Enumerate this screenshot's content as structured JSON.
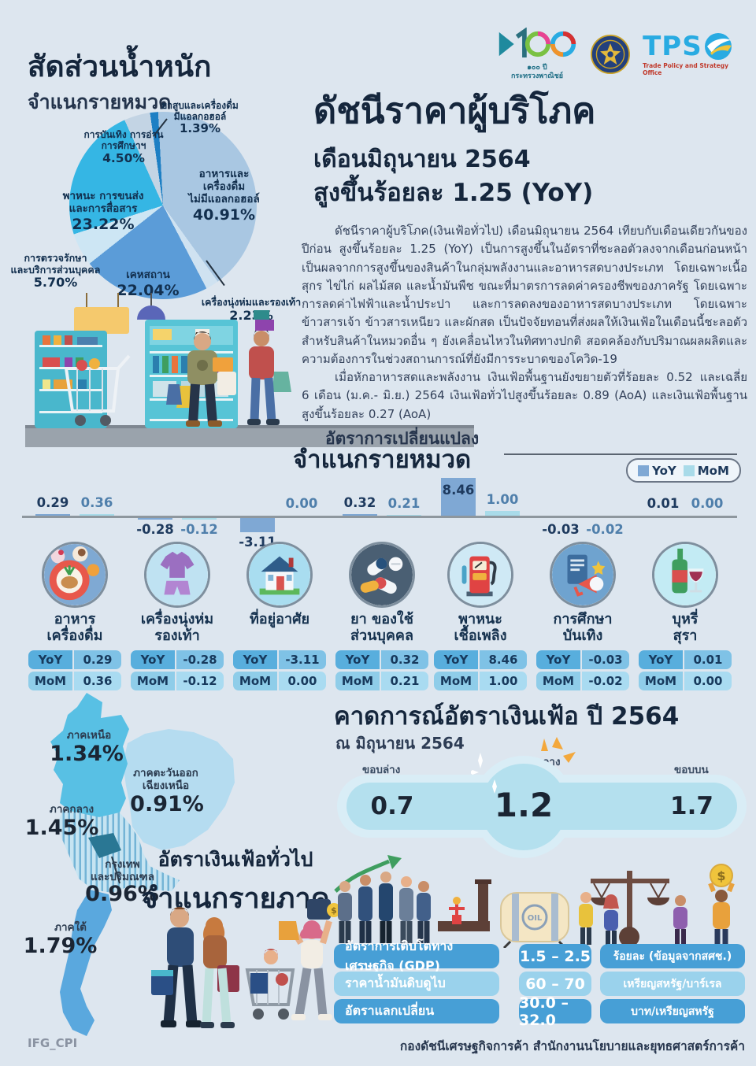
{
  "page": {
    "footer_left": "IFG_CPI",
    "footer_right": "กองดัชนีเศรษฐกิจการค้า สำนักงานนโยบายและยุทธศาสตร์การค้า",
    "background": "#dde6ef"
  },
  "logos": {
    "moc100_caption": "๑๐๐ ปี\nกระทรวงพาณิชย์",
    "tpso_word": "TPS",
    "tpso_subtitle": "Trade Policy and Strategy Office"
  },
  "weight_section": {
    "title": "สัดส่วนน้ำหนัก",
    "subtitle": "จำแนกรายหมวด",
    "labels": {
      "tobacco": {
        "text": "ยาสูบและเครื่องดื่ม\nมีแอลกอฮอล์",
        "value": "1.39%"
      },
      "entertainment": {
        "text": "การบันเทิง การอ่าน\nการศึกษาฯ",
        "value": "4.50%"
      },
      "food": {
        "text": "อาหารและ\nเครื่องดื่ม\nไม่มีแอลกอฮอล์",
        "value": "40.91%"
      },
      "transport": {
        "text": "พาหนะ การขนส่ง\nและการสื่อสาร",
        "value": "23.22%"
      },
      "housing": {
        "text": "เคหสถาน",
        "value": "22.04%"
      },
      "medical": {
        "text": "การตรวจรักษา\nและบริการส่วนบุคคล",
        "value": "5.70%"
      },
      "clothing": {
        "text": "เครื่องนุ่งห่มและรองเท้า",
        "value": "2.23%"
      }
    }
  },
  "headline": {
    "title": "ดัชนีราคาผู้บริโภค",
    "line2": "เดือนมิถุนายน 2564",
    "line3": "สูงขึ้นร้อยละ 1.25 (YoY)"
  },
  "body": {
    "p1": "ดัชนีราคาผู้บริโภค(เงินเฟ้อทั่วไป) เดือนมิถุนายน 2564 เทียบกับเดือนเดียวกันของปีก่อน สูงขึ้นร้อยละ 1.25 (YoY) เป็นการสูงขึ้นในอัตราที่ชะลอตัวลงจากเดือนก่อนหน้า เป็นผลจากการสูงขึ้นของสินค้าในกลุ่มพลังงานและอาหารสดบางประเภท โดยเฉพาะเนื้อสุกร ไข่ไก่ ผลไม้สด และน้ำมันพืช ขณะที่มาตรการลดค่าครองชีพของภาครัฐ โดยเฉพาะการลดค่าไฟฟ้าและน้ำประปา และการลดลงของอาหารสดบางประเภท โดยเฉพาะข้าวสารเจ้า ข้าวสารเหนียว และผักสด เป็นปัจจัยทอนที่ส่งผลให้เงินเฟ้อในเดือนนี้ชะลอตัว สำหรับสินค้าในหมวดอื่น ๆ ยังเคลื่อนไหวในทิศทางปกติ สอดคล้องกับปริมาณผลผลิตและความต้องการในช่วงสถานการณ์ที่ยังมีการระบาดของโควิด-19",
    "p2": "เมื่อหักอาหารสดและพลังงาน เงินเฟ้อพื้นฐานยังขยายตัวที่ร้อยละ 0.52 และเฉลี่ย 6 เดือน (ม.ค.- มิ.ย.) 2564 เงินเฟ้อทั่วไปสูงขึ้นร้อยละ 0.89 (AoA) และเงินเฟ้อพื้นฐานสูงขึ้นร้อยละ 0.27 (AoA)"
  },
  "change_section": {
    "kicker": "อัตราการเปลี่ยนแปลง",
    "title": "จำแนกรายหมวด",
    "legend": [
      {
        "label": "YoY",
        "color": "#7fa8d4"
      },
      {
        "label": "MoM",
        "color": "#a9dbe9"
      }
    ]
  },
  "mini_table": {
    "yoy_label": "YoY",
    "mom_label": "MoM"
  },
  "categories": [
    {
      "label_lines": [
        "อาหาร",
        "เครื่องดื่ม"
      ],
      "icon": "food-icon",
      "yoy": "0.29",
      "mom": "0.36"
    },
    {
      "label_lines": [
        "เครื่องนุ่งห่ม",
        "รองเท้า"
      ],
      "icon": "clothing-icon",
      "yoy": "-0.28",
      "mom": "-0.12"
    },
    {
      "label_lines": [
        "ที่อยู่อาศัย"
      ],
      "icon": "housing-icon",
      "yoy": "-3.11",
      "mom": "0.00"
    },
    {
      "label_lines": [
        "ยา ของใช้",
        "ส่วนบุคคล"
      ],
      "icon": "medicine-icon",
      "yoy": "0.32",
      "mom": "0.21"
    },
    {
      "label_lines": [
        "พาหนะ",
        "เชื้อเพลิง"
      ],
      "icon": "fuel-icon",
      "yoy": "8.46",
      "mom": "1.00"
    },
    {
      "label_lines": [
        "การศึกษา",
        "บันเทิง"
      ],
      "icon": "education-icon",
      "yoy": "-0.03",
      "mom": "-0.02"
    },
    {
      "label_lines": [
        "บุหรี่",
        "สุรา"
      ],
      "icon": "liquor-icon",
      "yoy": "0.01",
      "mom": "0.00"
    }
  ],
  "region_section": {
    "title1": "อัตราเงินเฟ้อทั่วไป",
    "title2": "จำแนกรายภาค",
    "regions": {
      "north": {
        "name": "ภาคเหนือ",
        "value": "1.34%"
      },
      "northeast": {
        "name": "ภาคตะวันออก\nเฉียงเหนือ",
        "value": "0.91%"
      },
      "central": {
        "name": "ภาคกลาง",
        "value": "1.45%"
      },
      "bangkok": {
        "name": "กรุงเทพ\nและปริมณฑล",
        "value": "0.96%"
      },
      "south": {
        "name": "ภาคใต้",
        "value": "1.79%"
      }
    }
  },
  "forecast": {
    "title": "คาดการณ์อัตราเงินเฟ้อ ปี 2564",
    "asof": "ณ มิถุนายน 2564",
    "lower_label": "ขอบล่าง",
    "mid_label": "ค่ากลาง",
    "upper_label": "ขอบบน",
    "lower": "0.7",
    "mid": "1.2",
    "upper": "1.7"
  },
  "assumptions": {
    "rows": [
      {
        "label": "อัตราการเติบโตทางเศรษฐกิจ (GDP)",
        "value": "1.5 – 2.5",
        "unit": "ร้อยละ (ข้อมูลจากสศช.)",
        "tone": "dark"
      },
      {
        "label": "ราคาน้ำมันดิบดูไบ",
        "value": "60 – 70",
        "unit": "เหรียญสหรัฐ/บาร์เรล",
        "tone": "light"
      },
      {
        "label": "อัตราแลกเปลี่ยน",
        "value": "30.0 – 32.0",
        "unit": "บาท/เหรียญสหรัฐ",
        "tone": "dark"
      }
    ]
  },
  "chart_data": [
    {
      "name": "weight-pie",
      "type": "pie",
      "title": "สัดส่วนน้ำหนัก จำแนกรายหมวด",
      "start_angle": -8,
      "slices": [
        {
          "label": "ยาสูบและเครื่องดื่มมีแอลกอฮอล์",
          "value": 1.39,
          "color": "#1d7fc4"
        },
        {
          "label": "อาหารและเครื่องดื่มไม่มีแอลกอฮอล์",
          "value": 40.91,
          "color": "#a9c7e2"
        },
        {
          "label": "เครื่องนุ่งห่มและรองเท้า",
          "value": 2.23,
          "color": "#cfe2f1"
        },
        {
          "label": "เคหสถาน",
          "value": 22.04,
          "color": "#5b9cd8"
        },
        {
          "label": "การตรวจรักษาและบริการส่วนบุคคล",
          "value": 5.7,
          "color": "#cde6f4"
        },
        {
          "label": "พาหนะ การขนส่ง และการสื่อสาร",
          "value": 23.22,
          "color": "#35b6e4"
        },
        {
          "label": "การบันเทิง การอ่าน การศึกษาฯ",
          "value": 4.5,
          "color": "#c3d4e4"
        }
      ]
    },
    {
      "name": "category-bars",
      "type": "bar",
      "title": "อัตราการเปลี่ยนแปลง จำแนกรายหมวด",
      "categories": [
        "อาหาร เครื่องดื่ม",
        "เครื่องนุ่งห่ม รองเท้า",
        "ที่อยู่อาศัย",
        "ยา ของใช้ส่วนบุคคล",
        "พาหนะ เชื้อเพลิง",
        "การศึกษา บันเทิง",
        "บุหรี่ สุรา"
      ],
      "series": [
        {
          "name": "YoY",
          "color": "#7fa8d4",
          "values": [
            0.29,
            -0.28,
            -3.11,
            0.32,
            8.46,
            -0.03,
            0.01
          ]
        },
        {
          "name": "MoM",
          "color": "#a9dbe9",
          "values": [
            0.36,
            -0.12,
            0.0,
            0.21,
            1.0,
            -0.02,
            0.0
          ]
        }
      ],
      "unit": "ร้อยละ",
      "legend_position": "top-right"
    },
    {
      "name": "regional-inflation",
      "type": "heatmap",
      "title": "อัตราเงินเฟ้อทั่วไป จำแนกรายภาค",
      "categories": [
        "ภาคเหนือ",
        "ภาคตะวันออกเฉียงเหนือ",
        "ภาคกลาง",
        "กรุงเทพและปริมณฑล",
        "ภาคใต้"
      ],
      "values": [
        1.34,
        0.91,
        1.45,
        0.96,
        1.79
      ],
      "unit": "%"
    },
    {
      "name": "inflation-forecast-2564",
      "type": "table",
      "title": "คาดการณ์อัตราเงินเฟ้อ ปี 2564 ณ มิถุนายน 2564",
      "categories": [
        "ขอบล่าง",
        "ค่ากลาง",
        "ขอบบน"
      ],
      "values": [
        0.7,
        1.2,
        1.7
      ]
    }
  ]
}
